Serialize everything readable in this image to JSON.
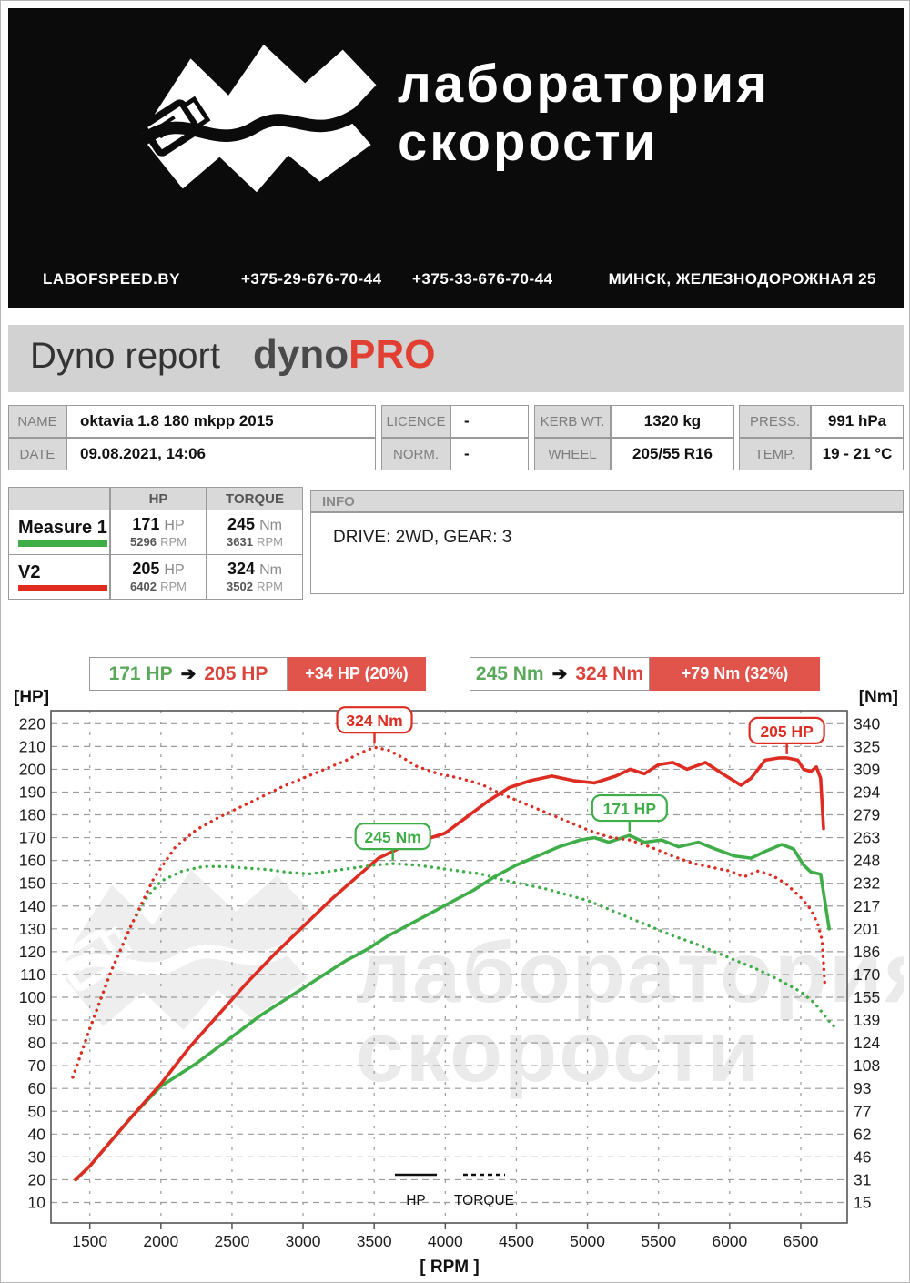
{
  "header": {
    "wordmark_line1": "лаборатория",
    "wordmark_line2": "скорости",
    "site": "LABOFSPEED.BY",
    "phone1": "+375-29-676-70-44",
    "phone2": "+375-33-676-70-44",
    "address": "МИНСК, ЖЕЛЕЗНОДОРОЖНАЯ 25"
  },
  "title": {
    "main": "Dyno report",
    "brand_gray": "dyno",
    "brand_red": "PRO"
  },
  "info_table": {
    "name_label": "NAME",
    "name_value": "oktavia 1.8 180 mkpp 2015",
    "licence_label": "LICENCE",
    "licence_value": "-",
    "kerb_label": "KERB WT.",
    "kerb_value": "1320 kg",
    "press_label": "PRESS.",
    "press_value": "991 hPa",
    "date_label": "DATE",
    "date_value": "09.08.2021, 14:06",
    "norm_label": "NORM.",
    "norm_value": "-",
    "wheel_label": "WHEEL",
    "wheel_value": "205/55 R16",
    "temp_label": "TEMP.",
    "temp_value": "19 - 21 °C"
  },
  "measurements": {
    "hp_col": "HP",
    "torque_col": "TORQUE",
    "rows": [
      {
        "name": "Measure 1",
        "color": "#3fae49",
        "hp": "171",
        "hp_unit": "HP",
        "hp_rpm": "5296",
        "hp_rpm_unit": "RPM",
        "torque": "245",
        "torque_unit": "Nm",
        "torque_rpm": "3631",
        "torque_rpm_unit": "RPM"
      },
      {
        "name": "V2",
        "color": "#e02b20",
        "hp": "205",
        "hp_unit": "HP",
        "hp_rpm": "6402",
        "hp_rpm_unit": "RPM",
        "torque": "324",
        "torque_unit": "Nm",
        "torque_rpm": "3502",
        "torque_rpm_unit": "RPM"
      }
    ]
  },
  "info_box": {
    "header": "INFO",
    "text": "DRIVE: 2WD,  GEAR: 3"
  },
  "badges": [
    {
      "from": "171 HP",
      "to": "205 HP",
      "gain": "+34 HP  (20%)"
    },
    {
      "from": "245 Nm",
      "to": "324 Nm",
      "gain": "+79 Nm  (32%)"
    }
  ],
  "accents": {
    "green": "#3fae49",
    "red": "#dd2c22",
    "badge_red_bg": "#e0544b"
  },
  "chart_data": {
    "type": "line",
    "x_label": "[ RPM ]",
    "y_left_label": "[HP]",
    "y_right_label": "[Nm]",
    "x_ticks": [
      1500,
      2000,
      2500,
      3000,
      3500,
      4000,
      4500,
      5000,
      5500,
      6000,
      6500
    ],
    "y_left_ticks": [
      220,
      210,
      200,
      190,
      180,
      170,
      160,
      150,
      140,
      130,
      120,
      110,
      100,
      90,
      80,
      70,
      60,
      50,
      40,
      30,
      20,
      10
    ],
    "y_right_ticks": [
      340,
      325,
      309,
      294,
      279,
      263,
      248,
      232,
      217,
      201,
      186,
      170,
      155,
      139,
      124,
      108,
      93,
      77,
      62,
      46,
      31,
      15
    ],
    "x_range_rpm": [
      1230,
      6830
    ],
    "grid": true,
    "legend_position": "bottom-center",
    "watermark": {
      "line1": "лаборатория",
      "line2": "скорости"
    },
    "series": [
      {
        "name": "Measure 1 HP",
        "axis": "hp",
        "style": "solid",
        "color": "#3fae49",
        "points": [
          [
            1400,
            20
          ],
          [
            1500,
            26
          ],
          [
            1650,
            37
          ],
          [
            1800,
            48
          ],
          [
            2000,
            61
          ],
          [
            2100,
            65
          ],
          [
            2250,
            71
          ],
          [
            2400,
            78
          ],
          [
            2550,
            85
          ],
          [
            2700,
            92
          ],
          [
            2850,
            98
          ],
          [
            3000,
            104
          ],
          [
            3150,
            110
          ],
          [
            3300,
            116
          ],
          [
            3450,
            121
          ],
          [
            3600,
            127
          ],
          [
            3750,
            132
          ],
          [
            3900,
            137
          ],
          [
            4050,
            142
          ],
          [
            4200,
            147
          ],
          [
            4350,
            153
          ],
          [
            4500,
            158
          ],
          [
            4650,
            162
          ],
          [
            4800,
            166
          ],
          [
            4950,
            169
          ],
          [
            5050,
            170
          ],
          [
            5150,
            168
          ],
          [
            5296,
            171
          ],
          [
            5400,
            168
          ],
          [
            5520,
            169
          ],
          [
            5640,
            166
          ],
          [
            5780,
            168
          ],
          [
            5900,
            165
          ],
          [
            6030,
            162
          ],
          [
            6150,
            161
          ],
          [
            6250,
            164
          ],
          [
            6365,
            167
          ],
          [
            6450,
            165
          ],
          [
            6520,
            158
          ],
          [
            6570,
            155
          ],
          [
            6640,
            154
          ],
          [
            6700,
            130
          ]
        ]
      },
      {
        "name": "V2 HP",
        "axis": "hp",
        "style": "solid",
        "color": "#dd2c22",
        "points": [
          [
            1400,
            20
          ],
          [
            1500,
            26
          ],
          [
            1650,
            37
          ],
          [
            1800,
            48
          ],
          [
            2000,
            62
          ],
          [
            2200,
            78
          ],
          [
            2400,
            92
          ],
          [
            2600,
            106
          ],
          [
            2800,
            119
          ],
          [
            3000,
            131
          ],
          [
            3200,
            143
          ],
          [
            3400,
            154
          ],
          [
            3530,
            161
          ],
          [
            3700,
            166
          ],
          [
            3850,
            169
          ],
          [
            4000,
            172
          ],
          [
            4150,
            179
          ],
          [
            4300,
            186
          ],
          [
            4450,
            192
          ],
          [
            4600,
            195
          ],
          [
            4750,
            197
          ],
          [
            4900,
            195
          ],
          [
            5050,
            194
          ],
          [
            5200,
            197
          ],
          [
            5300,
            200
          ],
          [
            5400,
            198
          ],
          [
            5500,
            202
          ],
          [
            5600,
            203
          ],
          [
            5700,
            200
          ],
          [
            5830,
            203
          ],
          [
            5950,
            198
          ],
          [
            6080,
            193
          ],
          [
            6150,
            196
          ],
          [
            6250,
            204
          ],
          [
            6350,
            205
          ],
          [
            6402,
            205
          ],
          [
            6480,
            204
          ],
          [
            6520,
            200
          ],
          [
            6570,
            199
          ],
          [
            6610,
            201
          ],
          [
            6640,
            196
          ],
          [
            6660,
            174
          ]
        ]
      },
      {
        "name": "Measure 1 Torque",
        "axis": "nm",
        "style": "dotted",
        "color": "#3fae49",
        "points": [
          [
            1380,
            100
          ],
          [
            1500,
            133
          ],
          [
            1650,
            172
          ],
          [
            1800,
            205
          ],
          [
            1900,
            222
          ],
          [
            2000,
            233
          ],
          [
            2150,
            240
          ],
          [
            2300,
            243
          ],
          [
            2450,
            243
          ],
          [
            2600,
            242
          ],
          [
            2750,
            241
          ],
          [
            2900,
            239
          ],
          [
            3050,
            238
          ],
          [
            3200,
            240
          ],
          [
            3350,
            242
          ],
          [
            3500,
            244
          ],
          [
            3631,
            245
          ],
          [
            3800,
            244
          ],
          [
            3950,
            242
          ],
          [
            4100,
            240
          ],
          [
            4250,
            238
          ],
          [
            4400,
            234
          ],
          [
            4550,
            231
          ],
          [
            4700,
            228
          ],
          [
            4850,
            224
          ],
          [
            5000,
            220
          ],
          [
            5150,
            214
          ],
          [
            5300,
            208
          ],
          [
            5450,
            202
          ],
          [
            5600,
            196
          ],
          [
            5750,
            191
          ],
          [
            5900,
            185
          ],
          [
            6050,
            179
          ],
          [
            6200,
            173
          ],
          [
            6350,
            166
          ],
          [
            6500,
            158
          ],
          [
            6600,
            150
          ],
          [
            6650,
            144
          ],
          [
            6700,
            138
          ],
          [
            6750,
            133
          ]
        ]
      },
      {
        "name": "V2 Torque",
        "axis": "nm",
        "style": "dotted",
        "color": "#dd2c22",
        "points": [
          [
            1380,
            100
          ],
          [
            1500,
            133
          ],
          [
            1650,
            172
          ],
          [
            1800,
            205
          ],
          [
            1950,
            235
          ],
          [
            2100,
            256
          ],
          [
            2250,
            268
          ],
          [
            2400,
            276
          ],
          [
            2550,
            283
          ],
          [
            2700,
            290
          ],
          [
            2850,
            297
          ],
          [
            3000,
            303
          ],
          [
            3150,
            309
          ],
          [
            3300,
            315
          ],
          [
            3400,
            320
          ],
          [
            3502,
            324
          ],
          [
            3600,
            322
          ],
          [
            3700,
            317
          ],
          [
            3800,
            311
          ],
          [
            3950,
            306
          ],
          [
            4100,
            303
          ],
          [
            4250,
            299
          ],
          [
            4400,
            292
          ],
          [
            4550,
            286
          ],
          [
            4700,
            280
          ],
          [
            4850,
            274
          ],
          [
            5000,
            268
          ],
          [
            5150,
            263
          ],
          [
            5300,
            261
          ],
          [
            5450,
            256
          ],
          [
            5600,
            250
          ],
          [
            5750,
            245
          ],
          [
            5900,
            242
          ],
          [
            6000,
            240
          ],
          [
            6100,
            236
          ],
          [
            6200,
            240
          ],
          [
            6300,
            237
          ],
          [
            6400,
            231
          ],
          [
            6500,
            222
          ],
          [
            6570,
            214
          ],
          [
            6620,
            204
          ],
          [
            6650,
            193
          ],
          [
            6670,
            162
          ]
        ]
      }
    ],
    "annotations": [
      {
        "text": "324 Nm",
        "color": "#dd2c22",
        "axis": "nm",
        "rpm": 3502,
        "value": 324
      },
      {
        "text": "245 Nm",
        "color": "#3fae49",
        "axis": "nm",
        "rpm": 3631,
        "value": 245
      },
      {
        "text": "171 HP",
        "color": "#3fae49",
        "axis": "hp",
        "rpm": 5296,
        "value": 171
      },
      {
        "text": "205 HP",
        "color": "#dd2c22",
        "axis": "hp",
        "rpm": 6402,
        "value": 205
      }
    ],
    "legend": [
      {
        "label": "HP",
        "style": "solid"
      },
      {
        "label": "TORQUE",
        "style": "dotted"
      }
    ]
  }
}
